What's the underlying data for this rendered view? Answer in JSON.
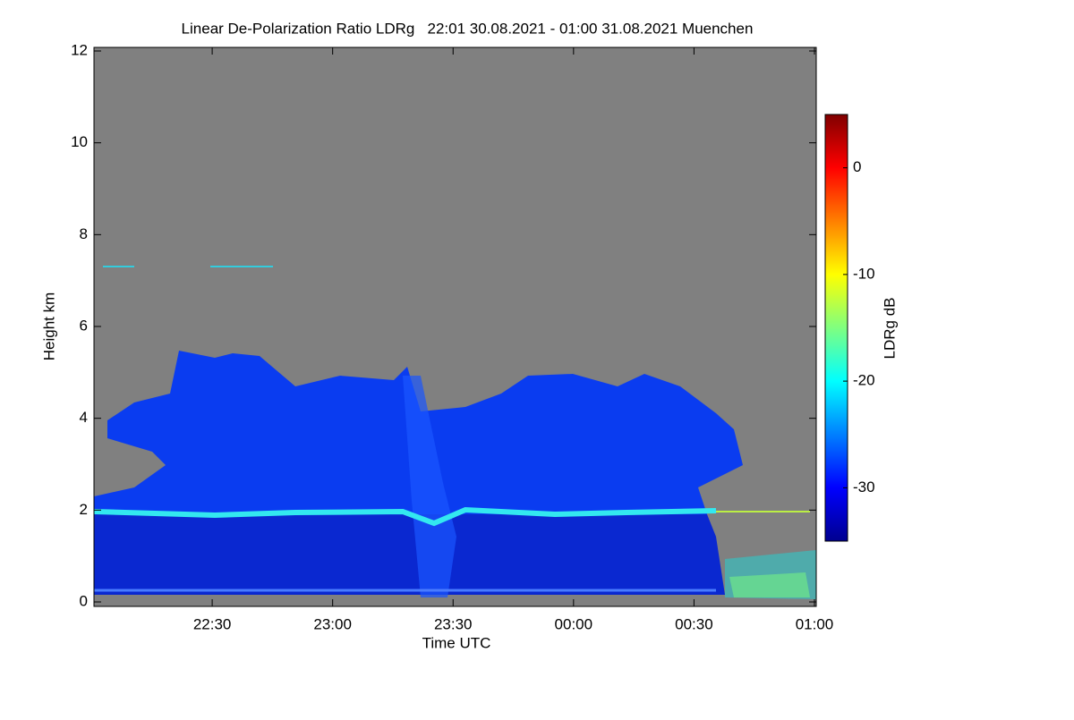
{
  "chart_data": {
    "type": "heatmap",
    "title": "Linear De-Polarization Ratio LDRg   22:01 30.08.2021 - 01:00 31.08.2021 Muenchen",
    "x_label": "Time UTC",
    "y_label": "Height km",
    "xlim": [
      22.0167,
      25
    ],
    "xticks": [
      {
        "value": 22.5,
        "label": "22:30"
      },
      {
        "value": 23,
        "label": "23:00"
      },
      {
        "value": 23.5,
        "label": "23:30"
      },
      {
        "value": 24,
        "label": "00:00"
      },
      {
        "value": 24.5,
        "label": "00:30"
      },
      {
        "value": 25,
        "label": "01:00"
      }
    ],
    "ylim": [
      0,
      12
    ],
    "yticks": [
      0,
      2,
      4,
      6,
      8,
      10,
      12
    ],
    "colorbar": {
      "label": "LDRg dB",
      "lim": [
        -35,
        5
      ],
      "ticks": [
        -30,
        -20,
        -10,
        0
      ]
    }
  }
}
